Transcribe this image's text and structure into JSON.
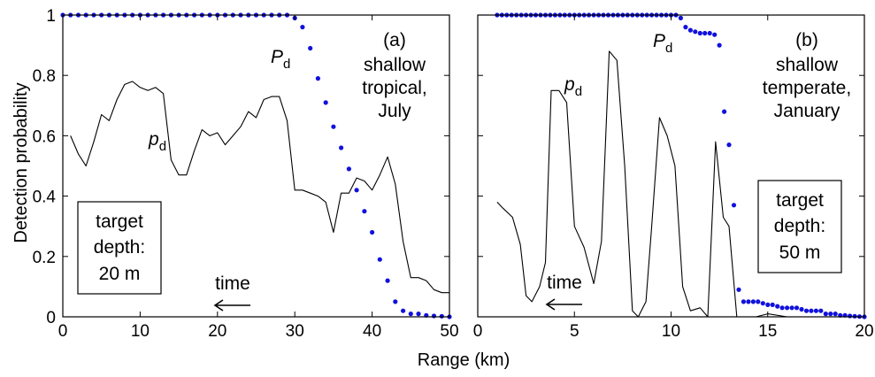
{
  "figure": {
    "ylabel": "Detection probability",
    "xlabel": "Range  (km)"
  },
  "chart_data": [
    {
      "type": "line",
      "panel": "a",
      "xlim": [
        0,
        50
      ],
      "ylim": [
        0,
        1
      ],
      "xticks": [
        "0",
        "10",
        "20",
        "30",
        "40",
        "50"
      ],
      "yticks": [
        "0",
        "0.2",
        "0.4",
        "0.6",
        "0.8",
        "1"
      ],
      "annotation": {
        "tag": "(a)",
        "lines": [
          "shallow",
          "tropical,",
          "July"
        ]
      },
      "target_box": [
        "target",
        "depth:",
        "20 m"
      ],
      "time_label": "time",
      "series": [
        {
          "name": "p_d",
          "label_main": "p",
          "label_sub": "d",
          "style": "line",
          "color": "#000000",
          "x": [
            1,
            2,
            3,
            4,
            5,
            6,
            7,
            8,
            9,
            10,
            11,
            12,
            13,
            14,
            15,
            16,
            17,
            18,
            19,
            20,
            21,
            22,
            23,
            24,
            25,
            26,
            27,
            28,
            29,
            30,
            31,
            32,
            33,
            34,
            35,
            36,
            37,
            38,
            39,
            40,
            41,
            42,
            43,
            44,
            45,
            46,
            47,
            48,
            49,
            50
          ],
          "y": [
            0.6,
            0.54,
            0.5,
            0.58,
            0.67,
            0.65,
            0.72,
            0.77,
            0.78,
            0.76,
            0.75,
            0.76,
            0.74,
            0.52,
            0.47,
            0.47,
            0.55,
            0.62,
            0.6,
            0.61,
            0.57,
            0.6,
            0.63,
            0.68,
            0.66,
            0.72,
            0.73,
            0.73,
            0.65,
            0.42,
            0.42,
            0.41,
            0.4,
            0.38,
            0.28,
            0.41,
            0.41,
            0.46,
            0.45,
            0.42,
            0.47,
            0.53,
            0.44,
            0.25,
            0.13,
            0.13,
            0.12,
            0.09,
            0.08,
            0.08
          ]
        },
        {
          "name": "P_d",
          "label_main": "P",
          "label_sub": "d",
          "style": "dots",
          "color": "#1111dd",
          "x": [
            0,
            1,
            2,
            3,
            4,
            5,
            6,
            7,
            8,
            9,
            10,
            11,
            12,
            13,
            14,
            15,
            16,
            17,
            18,
            19,
            20,
            21,
            22,
            23,
            24,
            25,
            26,
            27,
            28,
            29,
            30,
            31,
            32,
            33,
            34,
            35,
            36,
            37,
            38,
            39,
            40,
            41,
            42,
            43,
            44,
            45,
            46,
            47,
            48,
            49,
            50
          ],
          "y": [
            1,
            1,
            1,
            1,
            1,
            1,
            1,
            1,
            1,
            1,
            1,
            1,
            1,
            1,
            1,
            1,
            1,
            1,
            1,
            1,
            1,
            1,
            1,
            1,
            1,
            1,
            1,
            1,
            1,
            1,
            0.99,
            0.96,
            0.89,
            0.79,
            0.71,
            0.63,
            0.56,
            0.49,
            0.42,
            0.35,
            0.28,
            0.19,
            0.12,
            0.05,
            0.02,
            0.01,
            0.01,
            0.005,
            0.003,
            0.002,
            0.0
          ]
        }
      ]
    },
    {
      "type": "line",
      "panel": "b",
      "xlim": [
        0,
        20
      ],
      "ylim": [
        0,
        1
      ],
      "xticks": [
        "0",
        "5",
        "10",
        "15",
        "20"
      ],
      "yticks": [
        "0",
        "0.2",
        "0.4",
        "0.6",
        "0.8",
        "1"
      ],
      "annotation": {
        "tag": "(b)",
        "lines": [
          "shallow",
          "temperate,",
          "January"
        ]
      },
      "target_box": [
        "target",
        "depth:",
        "50 m"
      ],
      "time_label": "time",
      "series": [
        {
          "name": "p_d",
          "label_main": "p",
          "label_sub": "d",
          "style": "line",
          "color": "#000000",
          "x": [
            1,
            1.3,
            1.8,
            2.2,
            2.5,
            2.8,
            3.2,
            3.5,
            3.8,
            4.2,
            4.6,
            5,
            5.5,
            6,
            6.4,
            6.8,
            7.2,
            7.6,
            8,
            8.3,
            8.7,
            9,
            9.4,
            9.8,
            10.2,
            10.6,
            11,
            11.5,
            11.9,
            12.3,
            12.7,
            13,
            13.4,
            13.8,
            14.4,
            15,
            16,
            17,
            18,
            19
          ],
          "y": [
            0.38,
            0.36,
            0.33,
            0.24,
            0.07,
            0.05,
            0.1,
            0.18,
            0.75,
            0.75,
            0.71,
            0.3,
            0.23,
            0.11,
            0.25,
            0.88,
            0.85,
            0.5,
            0.02,
            0.0,
            0.05,
            0.3,
            0.66,
            0.6,
            0.5,
            0.1,
            0.02,
            0.03,
            0.0,
            0.58,
            0.33,
            0.3,
            0.0,
            0.0,
            0.0,
            0.01,
            0.0,
            0.0,
            0.0,
            0.0
          ]
        },
        {
          "name": "P_d",
          "label_main": "P",
          "label_sub": "d",
          "style": "dots",
          "color": "#1111dd",
          "x": [
            1,
            1.25,
            1.5,
            1.75,
            2,
            2.25,
            2.5,
            2.75,
            3,
            3.25,
            3.5,
            3.75,
            4,
            4.25,
            4.5,
            4.75,
            5,
            5.25,
            5.5,
            5.75,
            6,
            6.25,
            6.5,
            6.75,
            7,
            7.25,
            7.5,
            7.75,
            8,
            8.25,
            8.5,
            8.75,
            9,
            9.25,
            9.5,
            9.75,
            10,
            10.25,
            10.5,
            10.75,
            11,
            11.25,
            11.5,
            11.75,
            12,
            12.25,
            12.5,
            12.75,
            13,
            13.25,
            13.5,
            13.75,
            14,
            14.25,
            14.5,
            14.75,
            15,
            15.25,
            15.5,
            15.75,
            16,
            16.25,
            16.5,
            16.75,
            17,
            17.25,
            17.5,
            17.75,
            18,
            18.25,
            18.5,
            18.75,
            19,
            19.25,
            19.5,
            19.75,
            20
          ],
          "y": [
            1,
            1,
            1,
            1,
            1,
            1,
            1,
            1,
            1,
            1,
            1,
            1,
            1,
            1,
            1,
            1,
            1,
            1,
            1,
            1,
            1,
            1,
            1,
            1,
            1,
            1,
            1,
            1,
            1,
            1,
            1,
            1,
            1,
            1,
            1,
            1,
            1,
            1,
            0.99,
            0.96,
            0.95,
            0.945,
            0.94,
            0.94,
            0.94,
            0.935,
            0.9,
            0.68,
            0.57,
            0.37,
            0.09,
            0.05,
            0.05,
            0.05,
            0.05,
            0.045,
            0.04,
            0.04,
            0.035,
            0.03,
            0.03,
            0.03,
            0.03,
            0.025,
            0.02,
            0.02,
            0.02,
            0.02,
            0.01,
            0.01,
            0.01,
            0.005,
            0.005,
            0.003,
            0.002,
            0.001,
            0.0
          ]
        }
      ]
    }
  ]
}
